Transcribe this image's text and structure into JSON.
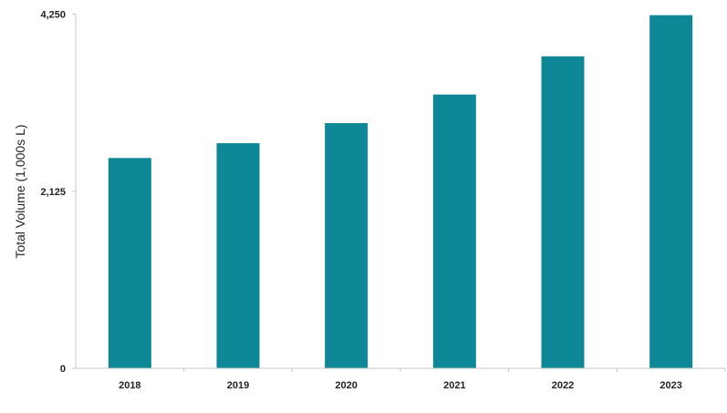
{
  "chart_data": {
    "type": "bar",
    "categories": [
      "2018",
      "2019",
      "2020",
      "2021",
      "2022",
      "2023"
    ],
    "values": [
      2525,
      2703,
      2944,
      3287,
      3746,
      4240
    ],
    "title": "",
    "xlabel": "",
    "ylabel": "Total Volume (1,000s L)",
    "ylim": [
      0,
      4250
    ],
    "yticks": [
      "0",
      "2,125",
      "4,250"
    ],
    "ytick_values": [
      0,
      2125,
      4250
    ],
    "grid": false,
    "legend": "none",
    "bar_color": "#0E8796",
    "axis_color": "#C8C8C8"
  }
}
